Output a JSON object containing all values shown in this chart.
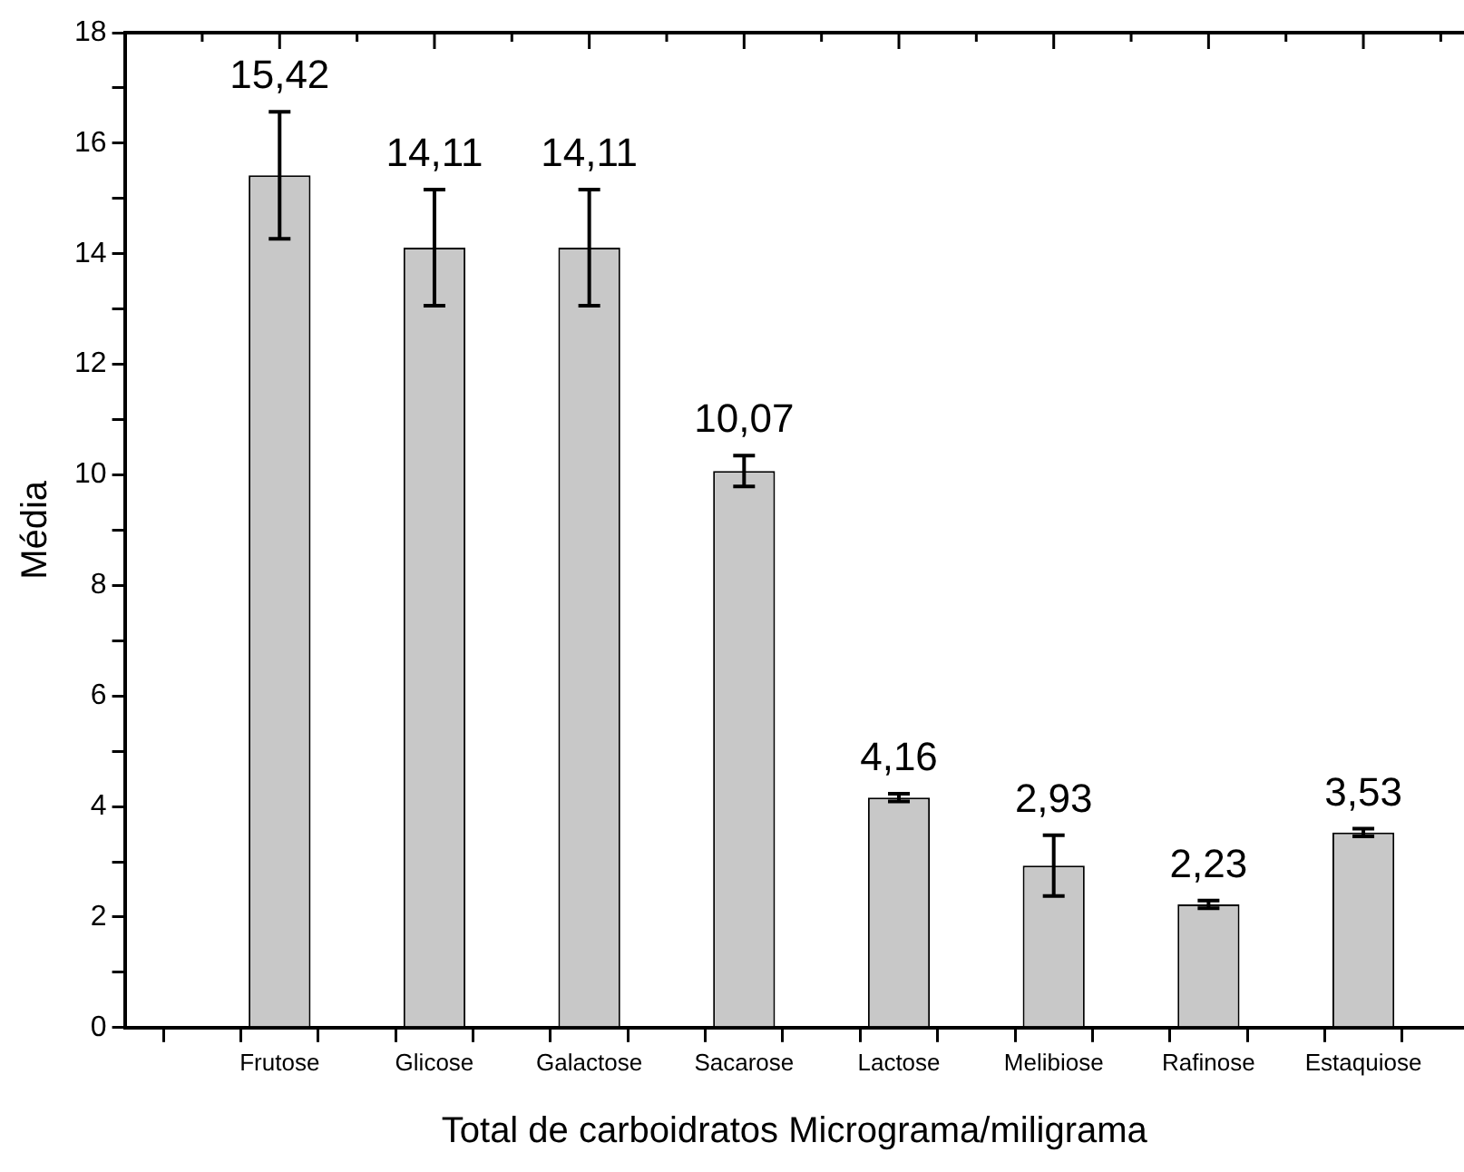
{
  "chart_data": {
    "type": "bar",
    "xlabel": "Total de carboidratos Micrograma/miligrama",
    "ylabel": "Média",
    "categories": [
      "Frutose",
      "Glicose",
      "Galactose",
      "Sacarose",
      "Lactose",
      "Melibiose",
      "Rafinose",
      "Estaquiose"
    ],
    "values": [
      15.42,
      14.11,
      14.11,
      10.07,
      4.16,
      2.93,
      2.23,
      3.53
    ],
    "errors": [
      1.15,
      1.05,
      1.05,
      0.28,
      0.07,
      0.55,
      0.07,
      0.07
    ],
    "value_labels": [
      "15,42",
      "14,11",
      "14,11",
      "10,07",
      "4,16",
      "2,93",
      "2,23",
      "3,53"
    ],
    "color": "#c8c8c8",
    "ylim": [
      0,
      18
    ],
    "yticks": [
      0,
      {
        "value": 1,
        "label": null
      },
      2,
      {
        "value": 3,
        "label": null
      },
      4,
      {
        "value": 5,
        "label": null
      },
      6,
      {
        "value": 7,
        "label": null
      },
      8,
      {
        "value": 9,
        "label": null
      },
      10,
      {
        "value": 11,
        "label": null
      },
      12,
      {
        "value": 13,
        "label": null
      },
      14,
      {
        "value": 15,
        "label": null
      },
      16,
      {
        "value": 17,
        "label": null
      },
      18
    ],
    "grid": false,
    "legend": false
  }
}
